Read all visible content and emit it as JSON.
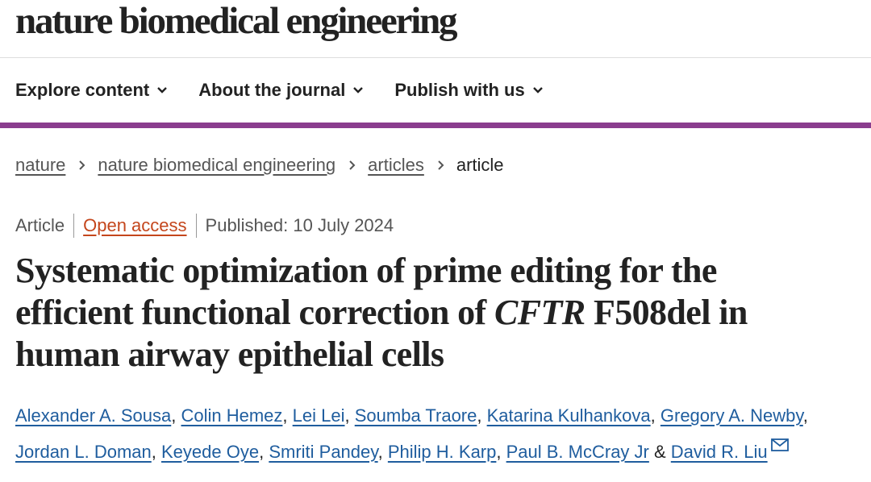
{
  "header": {
    "journal_name": "nature biomedical engineering"
  },
  "nav": {
    "items": [
      {
        "label": "Explore content",
        "icon": "chevron-down-icon"
      },
      {
        "label": "About the journal",
        "icon": "chevron-down-icon"
      },
      {
        "label": "Publish with us",
        "icon": "chevron-down-icon"
      }
    ]
  },
  "breadcrumb": {
    "items": [
      "nature",
      "nature biomedical engineering",
      "articles"
    ],
    "current": "article"
  },
  "article": {
    "type": "Article",
    "access": "Open access",
    "published": "Published: 10 July 2024",
    "title_part1": "Systematic optimization of prime editing for the efficient functional correction of ",
    "title_italic": "CFTR",
    "title_part2": " F508del in human airway epithelial cells",
    "authors": [
      "Alexander A. Sousa",
      "Colin Hemez",
      "Lei Lei",
      "Soumba Traore",
      "Katarina Kulhankova",
      "Gregory A. Newby",
      "Jordan L. Doman",
      "Keyede Oye",
      "Smriti Pandey",
      "Philip H. Karp",
      "Paul B. McCray Jr",
      "David R. Liu"
    ],
    "author_separator": ", ",
    "last_author_joiner": " & "
  },
  "colors": {
    "accent": "#8a3d8e",
    "open_access": "#c4461c",
    "link": "#1f5d9e"
  }
}
